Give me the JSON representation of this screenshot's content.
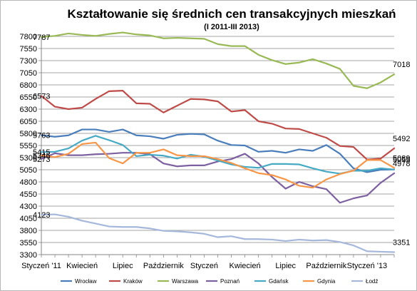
{
  "chart_data": {
    "type": "line",
    "title": "Kształtowanie się średnich cen transakcyjnych mieszkań",
    "subtitle": "(I 2011-III 2013)",
    "ylim": [
      3300,
      7800
    ],
    "yticks": [
      3300,
      3550,
      3800,
      4050,
      4300,
      4550,
      4800,
      5050,
      5300,
      5550,
      5800,
      6050,
      6300,
      6550,
      6800,
      7050,
      7300,
      7550,
      7800
    ],
    "x_count": 27,
    "xtick_labels": [
      "Styczeń '11",
      "Kwiecień",
      "Lipiec",
      "Październik",
      "Styczeń",
      "Kwiecień",
      "Lipiec",
      "Październik",
      "Styczeń '13"
    ],
    "xtick_positions": [
      0,
      3,
      6,
      9,
      12,
      15,
      18,
      21,
      24
    ],
    "grid": true,
    "legend_position": "bottom",
    "series": [
      {
        "name": "Wrocław",
        "color": "#4a7ebb",
        "values": [
          5763,
          5730,
          5760,
          5880,
          5880,
          5830,
          5880,
          5760,
          5740,
          5690,
          5770,
          5790,
          5780,
          5650,
          5560,
          5550,
          5420,
          5440,
          5400,
          5470,
          5440,
          5560,
          5380,
          5080,
          5000,
          5050,
          5055
        ]
      },
      {
        "name": "Kraków",
        "color": "#be4b48",
        "values": [
          6573,
          6350,
          6300,
          6330,
          6510,
          6670,
          6680,
          6420,
          6410,
          6230,
          6370,
          6510,
          6500,
          6460,
          6250,
          6280,
          6050,
          6000,
          5900,
          5890,
          5800,
          5710,
          5540,
          5520,
          5260,
          5280,
          5492
        ]
      },
      {
        "name": "Warszawa",
        "color": "#98b954",
        "values": [
          7787,
          7810,
          7860,
          7830,
          7810,
          7850,
          7880,
          7840,
          7820,
          7760,
          7770,
          7760,
          7750,
          7640,
          7600,
          7600,
          7420,
          7310,
          7230,
          7260,
          7330,
          7240,
          7130,
          6780,
          6730,
          6850,
          7018
        ]
      },
      {
        "name": "Poznań",
        "color": "#7d60a0",
        "values": [
          5273,
          5390,
          5350,
          5350,
          5370,
          5380,
          5400,
          5400,
          5370,
          5180,
          5120,
          5140,
          5140,
          5220,
          5270,
          5380,
          5180,
          4900,
          4660,
          4800,
          4710,
          4650,
          4370,
          4460,
          4520,
          4780,
          4978
        ]
      },
      {
        "name": "Gdańsk",
        "color": "#46aac5",
        "values": [
          5415,
          5420,
          5490,
          5650,
          5750,
          5660,
          5560,
          5330,
          5360,
          5340,
          5280,
          5360,
          5320,
          5240,
          5160,
          5110,
          5090,
          5170,
          5170,
          5160,
          5080,
          5010,
          4970,
          5030,
          5030,
          5080,
          5055
        ]
      },
      {
        "name": "Gdynia",
        "color": "#f79646",
        "values": [
          5346,
          5310,
          5380,
          5580,
          5610,
          5290,
          5180,
          5400,
          5400,
          5470,
          5350,
          5330,
          5330,
          5270,
          5190,
          5080,
          4980,
          4940,
          4850,
          4720,
          4680,
          4850,
          4960,
          5030,
          5250,
          5250,
          5089
        ]
      },
      {
        "name": "Łodź",
        "color": "#a5b8db",
        "values": [
          4123,
          4130,
          4080,
          4000,
          3940,
          3880,
          3870,
          3870,
          3840,
          3790,
          3780,
          3760,
          3730,
          3660,
          3680,
          3620,
          3620,
          3610,
          3580,
          3610,
          3590,
          3600,
          3560,
          3490,
          3370,
          3360,
          3351
        ]
      }
    ],
    "annotations": [
      {
        "text": "7787",
        "series": "Warszawa",
        "index": 0,
        "side": "start"
      },
      {
        "text": "6573",
        "series": "Kraków",
        "index": 0,
        "side": "start"
      },
      {
        "text": "5763",
        "series": "Wrocław",
        "index": 0,
        "side": "start"
      },
      {
        "text": "5415",
        "series": "Gdańsk",
        "index": 0,
        "side": "start"
      },
      {
        "text": "5346",
        "series": "Gdynia",
        "index": 0,
        "side": "start"
      },
      {
        "text": "5273",
        "series": "Poznań",
        "index": 0,
        "side": "start"
      },
      {
        "text": "4123",
        "series": "Łodź",
        "index": 0,
        "side": "start"
      },
      {
        "text": "7018",
        "series": "Warszawa",
        "index": 26,
        "side": "end"
      },
      {
        "text": "5492",
        "series": "Kraków",
        "index": 26,
        "side": "end"
      },
      {
        "text": "5089",
        "series": "Gdynia",
        "index": 26,
        "side": "end"
      },
      {
        "text": "5055",
        "series": "Wrocław",
        "index": 26,
        "side": "end"
      },
      {
        "text": "4978",
        "series": "Poznań",
        "index": 26,
        "side": "end"
      },
      {
        "text": "3351",
        "series": "Łodź",
        "index": 26,
        "side": "end"
      }
    ]
  }
}
